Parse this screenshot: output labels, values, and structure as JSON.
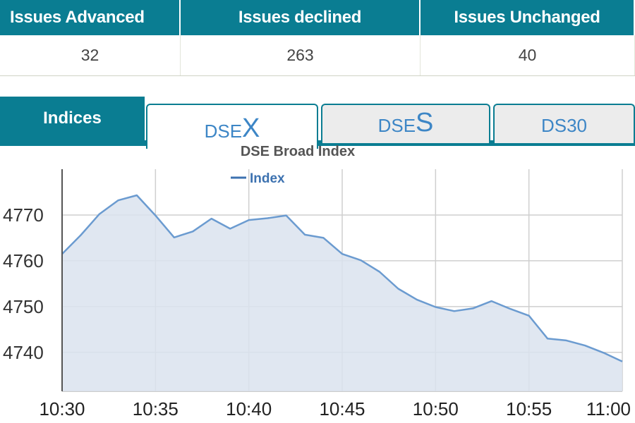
{
  "stats": {
    "headers": [
      "Issues Advanced",
      "Issues declined",
      "Issues Unchanged"
    ],
    "values": [
      "32",
      "263",
      "40"
    ]
  },
  "tabs": {
    "indices_label": "Indices",
    "items": [
      {
        "prefix": "DSE",
        "big": "X",
        "active": true
      },
      {
        "prefix": "DSE",
        "big": "S",
        "active": false
      },
      {
        "prefix": "",
        "big": "",
        "plain": "DS30",
        "active": false
      }
    ]
  },
  "colors": {
    "header_bg": "#0a7d92",
    "series_line": "#6b9bd0",
    "series_fill": "#dbe3ee",
    "grid": "#cfcfcf"
  },
  "chart_data": {
    "type": "area",
    "title": "DSE Broad Index",
    "legend": [
      {
        "name": "Index",
        "color": "#3d72b0"
      }
    ],
    "legend_placement": "top",
    "grid": true,
    "xlim": [
      "10:30",
      "11:00"
    ],
    "ylim": [
      4731.5,
      4780
    ],
    "x_ticks": [
      "10:30",
      "10:35",
      "10:40",
      "10:45",
      "10:50",
      "10:55",
      "11:00"
    ],
    "y_ticks": [
      4740,
      4750,
      4760,
      4770
    ],
    "series": [
      {
        "name": "Index",
        "x": [
          "10:30",
          "10:31",
          "10:32",
          "10:33",
          "10:34",
          "10:35",
          "10:36",
          "10:37",
          "10:38",
          "10:39",
          "10:40",
          "10:41",
          "10:42",
          "10:43",
          "10:44",
          "10:45",
          "10:46",
          "10:47",
          "10:48",
          "10:49",
          "10:50",
          "10:51",
          "10:52",
          "10:53",
          "10:54",
          "10:55",
          "10:56",
          "10:57",
          "10:58",
          "10:59",
          "11:00"
        ],
        "values": [
          4761.5,
          4765.6,
          4770.2,
          4773.2,
          4774.3,
          4769.9,
          4765.1,
          4766.4,
          4769.2,
          4767.0,
          4768.9,
          4769.3,
          4769.9,
          4765.7,
          4765.0,
          4761.5,
          4760.1,
          4757.6,
          4753.9,
          4751.5,
          4749.9,
          4749.0,
          4749.6,
          4751.2,
          4749.5,
          4748.0,
          4743.0,
          4742.6,
          4741.5,
          4739.9,
          4738.0
        ]
      }
    ]
  }
}
